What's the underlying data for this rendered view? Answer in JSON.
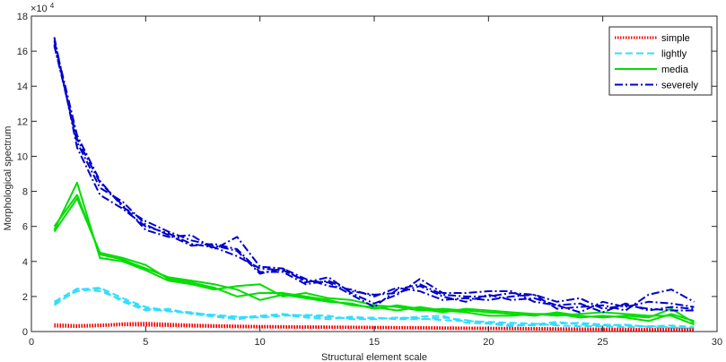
{
  "chart_data": {
    "type": "line",
    "xlabel": "Structural element scale",
    "ylabel": "Morphological spectrum",
    "y_exponent_label": "×10",
    "y_exponent": "4",
    "xlim": [
      0,
      30
    ],
    "ylim": [
      0,
      180000
    ],
    "xticks": [
      0,
      5,
      10,
      15,
      20,
      25,
      30
    ],
    "yticks": [
      0,
      20000,
      40000,
      60000,
      80000,
      100000,
      120000,
      140000,
      160000,
      180000
    ],
    "ytick_labels": [
      "0",
      "2",
      "4",
      "6",
      "8",
      "10",
      "12",
      "14",
      "16",
      "18"
    ],
    "grid": false,
    "legend_position": "top-right",
    "legend": [
      {
        "label": "simple",
        "color": "#ff0000",
        "style": "dotted"
      },
      {
        "label": "lightly",
        "color": "#33ddff",
        "style": "dashed"
      },
      {
        "label": "media",
        "color": "#00dd00",
        "style": "solid"
      },
      {
        "label": "severely",
        "color": "#0000cc",
        "style": "dashdot"
      }
    ],
    "x": [
      1,
      2,
      3,
      4,
      5,
      6,
      7,
      8,
      9,
      10,
      11,
      12,
      13,
      14,
      15,
      16,
      17,
      18,
      19,
      20,
      21,
      22,
      23,
      24,
      25,
      26,
      27,
      28,
      29
    ],
    "series": [
      {
        "group": "simple",
        "values": [
          4000,
          3500,
          3800,
          4200,
          4000,
          3800,
          3500,
          3200,
          3000,
          2800,
          2700,
          2600,
          2500,
          2500,
          2400,
          2300,
          2200,
          2100,
          2000,
          1900,
          1800,
          1700,
          1600,
          1500,
          1400,
          1300,
          1200,
          1100,
          1000
        ]
      },
      {
        "group": "simple",
        "values": [
          3500,
          3000,
          3500,
          4500,
          4800,
          4300,
          3800,
          3500,
          3200,
          3000,
          2900,
          2800,
          2700,
          2600,
          2500,
          2400,
          2300,
          2200,
          2100,
          2000,
          1900,
          1800,
          1700,
          1600,
          1500,
          1400,
          1300,
          1200,
          1100
        ]
      },
      {
        "group": "simple",
        "values": [
          3000,
          2800,
          3200,
          3800,
          3600,
          3300,
          3000,
          2800,
          2600,
          2500,
          2400,
          2300,
          2300,
          2200,
          2100,
          2000,
          1900,
          1800,
          1700,
          1600,
          1500,
          1400,
          1300,
          1200,
          1100,
          1000,
          900,
          800,
          700
        ]
      },
      {
        "group": "lightly",
        "values": [
          15000,
          24000,
          25000,
          19000,
          14000,
          12000,
          11000,
          9000,
          8000,
          9000,
          10000,
          9000,
          8000,
          7500,
          8000,
          7000,
          7000,
          8000,
          6500,
          5000,
          4000,
          3500,
          4500,
          5000,
          4000,
          3500,
          3000,
          3500,
          2500
        ]
      },
      {
        "group": "lightly",
        "values": [
          16000,
          23000,
          24500,
          17000,
          12000,
          13000,
          10000,
          8500,
          7000,
          8500,
          9500,
          8000,
          7000,
          8500,
          7500,
          7500,
          8500,
          9000,
          5000,
          4500,
          3000,
          4000,
          5500,
          4000,
          3500,
          4000,
          2500,
          2000,
          2000
        ]
      },
      {
        "group": "lightly",
        "values": [
          17000,
          24500,
          23000,
          18000,
          13000,
          11500,
          10500,
          9500,
          8500,
          8000,
          9000,
          9500,
          9000,
          7000,
          7000,
          8000,
          7500,
          6500,
          6000,
          5500,
          5000,
          4500,
          3500,
          3000,
          3000,
          2500,
          3000,
          2500,
          1500
        ]
      },
      {
        "group": "media",
        "values": [
          57000,
          76000,
          45000,
          42000,
          38000,
          30000,
          28000,
          25000,
          20000,
          22000,
          22000,
          20000,
          18000,
          15000,
          14000,
          12000,
          14000,
          12000,
          11000,
          9000,
          9000,
          10000,
          10000,
          8000,
          9000,
          8000,
          6000,
          10000,
          6000
        ]
      },
      {
        "group": "media",
        "values": [
          58000,
          85000,
          42000,
          40000,
          35000,
          29000,
          27000,
          24000,
          26000,
          27000,
          20000,
          22000,
          19000,
          18000,
          15000,
          14000,
          12000,
          13000,
          12000,
          11000,
          10000,
          9000,
          11000,
          9000,
          8000,
          9000,
          8000,
          13000,
          5000
        ]
      },
      {
        "group": "media",
        "values": [
          60000,
          78000,
          44000,
          41000,
          36000,
          31000,
          29000,
          27000,
          24000,
          18000,
          21000,
          19000,
          17000,
          16000,
          13000,
          15000,
          13000,
          11000,
          13000,
          12000,
          11000,
          10000,
          9000,
          10000,
          11000,
          10000,
          9000,
          9000,
          4000
        ]
      },
      {
        "group": "severely",
        "values": [
          168000,
          105000,
          78000,
          70000,
          60000,
          56000,
          50000,
          48000,
          43000,
          36000,
          35000,
          29000,
          28000,
          21000,
          14000,
          24000,
          27000,
          21000,
          20000,
          20000,
          22000,
          21000,
          13000,
          14000,
          15000,
          12000,
          21000,
          24000,
          17000
        ]
      },
      {
        "group": "severely",
        "values": [
          163000,
          110000,
          85000,
          72000,
          58000,
          54000,
          55000,
          47000,
          54000,
          37000,
          36000,
          28000,
          31000,
          22000,
          16000,
          21000,
          30000,
          22000,
          22000,
          23000,
          23000,
          17000,
          15000,
          11000,
          17000,
          14000,
          17000,
          16000,
          14000
        ]
      },
      {
        "group": "severely",
        "values": [
          166000,
          112000,
          86000,
          71000,
          63000,
          57000,
          52000,
          49000,
          46000,
          33000,
          36000,
          30000,
          26000,
          24000,
          20000,
          25000,
          23000,
          18000,
          19000,
          18000,
          20000,
          21000,
          17000,
          19000,
          13000,
          15000,
          13000,
          12000,
          12000
        ]
      },
      {
        "group": "severely",
        "values": [
          164000,
          108000,
          82000,
          74000,
          61000,
          55000,
          49000,
          50000,
          47000,
          34000,
          34000,
          27000,
          29000,
          23000,
          21000,
          22000,
          26000,
          20000,
          17000,
          21000,
          18000,
          19000,
          15000,
          16000,
          11000,
          16000,
          12000,
          14000,
          13000
        ]
      }
    ]
  }
}
